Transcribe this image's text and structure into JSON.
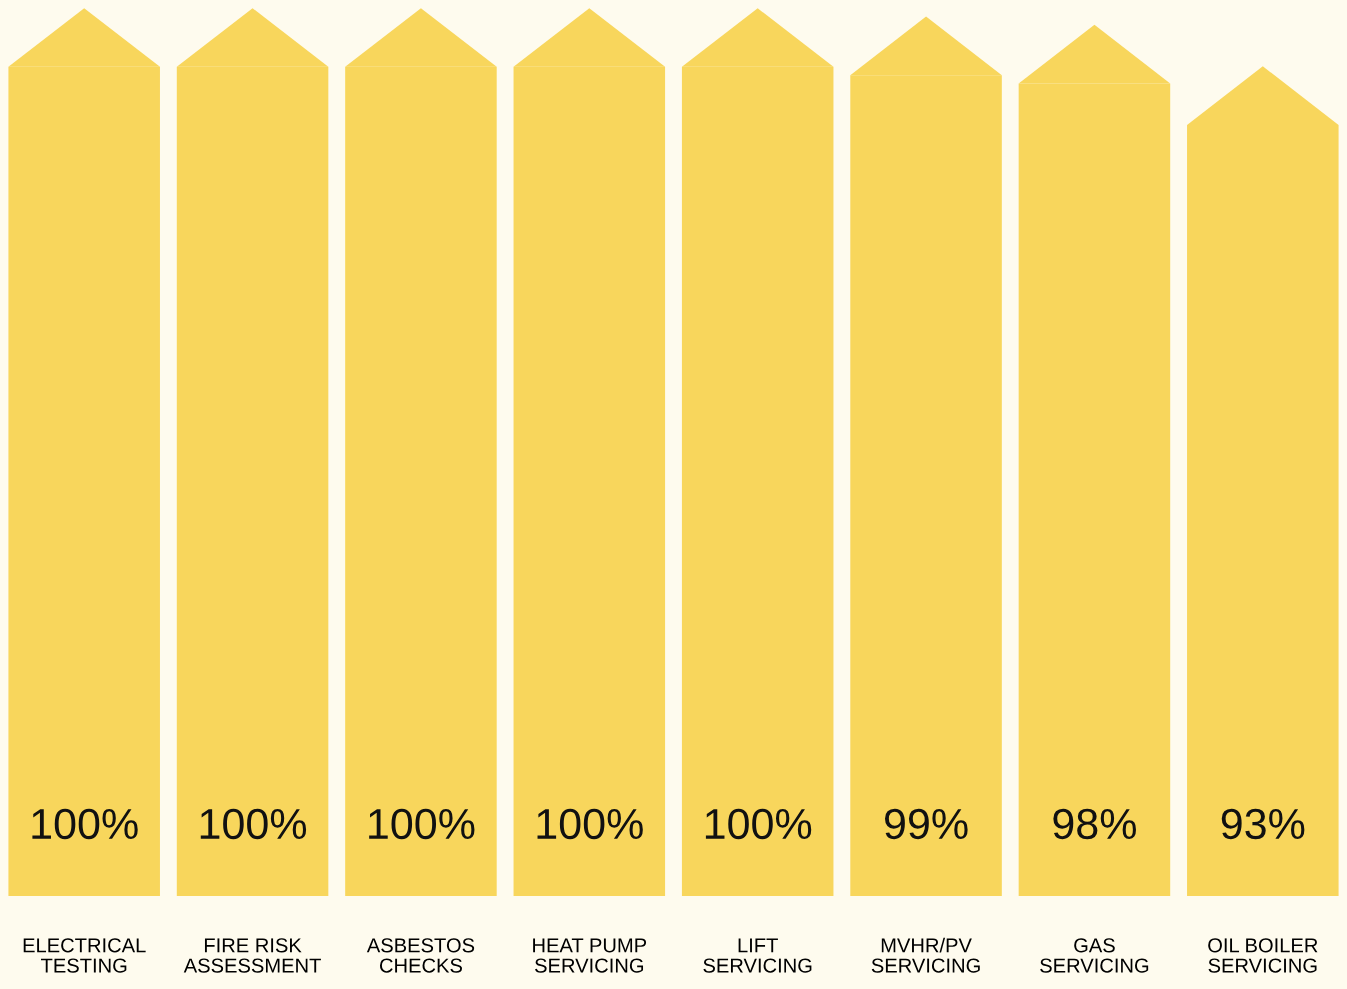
{
  "chart_data": {
    "type": "bar",
    "categories": [
      "ELECTRICAL\nTESTING",
      "FIRE RISK\nASSESSMENT",
      "ASBESTOS\nCHECKS",
      "HEAT PUMP\nSERVICING",
      "LIFT\nSERVICING",
      "MVHR/PV\nSERVICING",
      "GAS\nSERVICING",
      "OIL BOILER\nSERVICING"
    ],
    "values": [
      100,
      100,
      100,
      100,
      100,
      99,
      98,
      93
    ],
    "value_labels": [
      "100%",
      "100%",
      "100%",
      "100%",
      "100%",
      "99%",
      "98%",
      "93%"
    ],
    "color": "#f8d65c",
    "tick_labels": "x",
    "grid": false,
    "legend": false
  }
}
